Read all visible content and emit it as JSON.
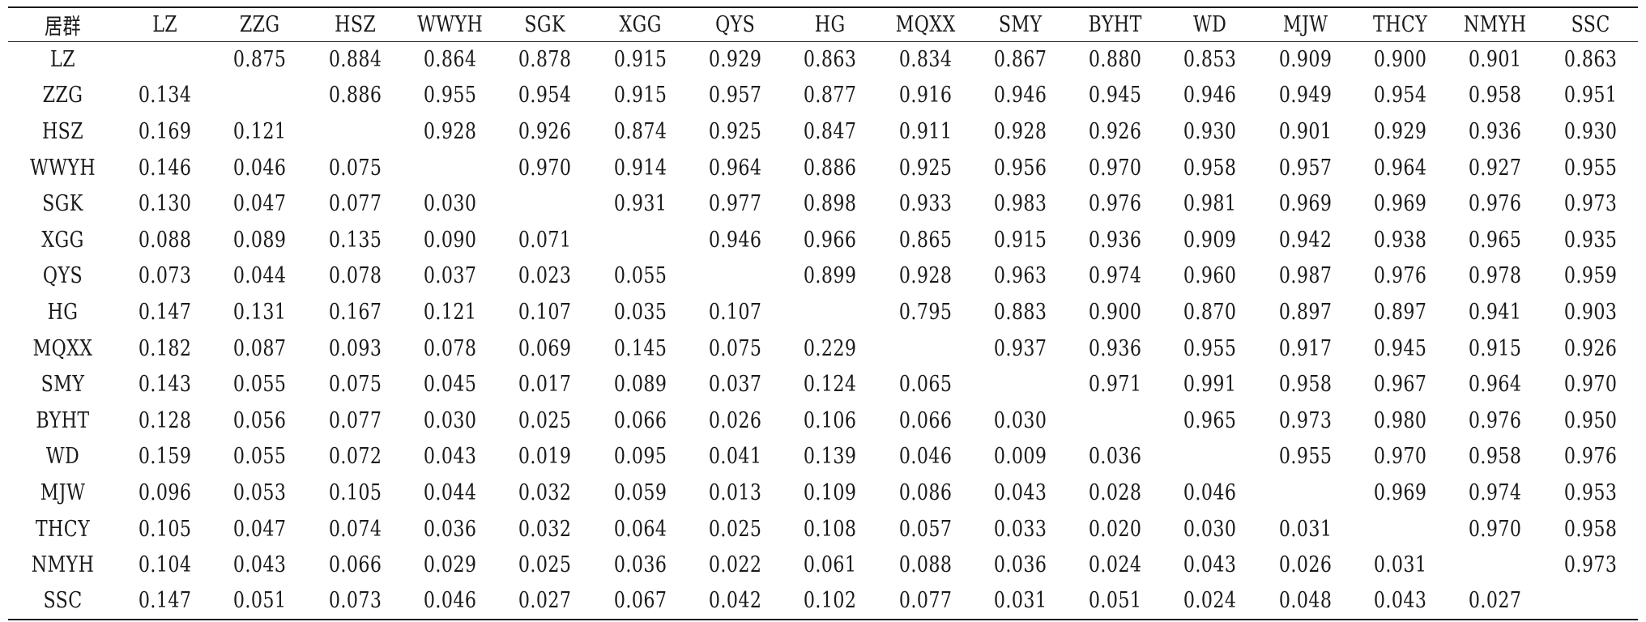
{
  "table": {
    "corner_label": "居群",
    "columns": [
      "LZ",
      "ZZG",
      "HSZ",
      "WWYH",
      "SGK",
      "XGG",
      "QYS",
      "HG",
      "MQXX",
      "SMY",
      "BYHT",
      "WD",
      "MJW",
      "THCY",
      "NMYH",
      "SSC"
    ],
    "rows": [
      {
        "label": "LZ",
        "cells": [
          "",
          "0.875",
          "0.884",
          "0.864",
          "0.878",
          "0.915",
          "0.929",
          "0.863",
          "0.834",
          "0.867",
          "0.880",
          "0.853",
          "0.909",
          "0.900",
          "0.901",
          "0.863"
        ]
      },
      {
        "label": "ZZG",
        "cells": [
          "0.134",
          "",
          "0.886",
          "0.955",
          "0.954",
          "0.915",
          "0.957",
          "0.877",
          "0.916",
          "0.946",
          "0.945",
          "0.946",
          "0.949",
          "0.954",
          "0.958",
          "0.951"
        ]
      },
      {
        "label": "HSZ",
        "cells": [
          "0.169",
          "0.121",
          "",
          "0.928",
          "0.926",
          "0.874",
          "0.925",
          "0.847",
          "0.911",
          "0.928",
          "0.926",
          "0.930",
          "0.901",
          "0.929",
          "0.936",
          "0.930"
        ]
      },
      {
        "label": "WWYH",
        "cells": [
          "0.146",
          "0.046",
          "0.075",
          "",
          "0.970",
          "0.914",
          "0.964",
          "0.886",
          "0.925",
          "0.956",
          "0.970",
          "0.958",
          "0.957",
          "0.964",
          "0.927",
          "0.955"
        ]
      },
      {
        "label": "SGK",
        "cells": [
          "0.130",
          "0.047",
          "0.077",
          "0.030",
          "",
          "0.931",
          "0.977",
          "0.898",
          "0.933",
          "0.983",
          "0.976",
          "0.981",
          "0.969",
          "0.969",
          "0.976",
          "0.973"
        ]
      },
      {
        "label": "XGG",
        "cells": [
          "0.088",
          "0.089",
          "0.135",
          "0.090",
          "0.071",
          "",
          "0.946",
          "0.966",
          "0.865",
          "0.915",
          "0.936",
          "0.909",
          "0.942",
          "0.938",
          "0.965",
          "0.935"
        ]
      },
      {
        "label": "QYS",
        "cells": [
          "0.073",
          "0.044",
          "0.078",
          "0.037",
          "0.023",
          "0.055",
          "",
          "0.899",
          "0.928",
          "0.963",
          "0.974",
          "0.960",
          "0.987",
          "0.976",
          "0.978",
          "0.959"
        ]
      },
      {
        "label": "HG",
        "cells": [
          "0.147",
          "0.131",
          "0.167",
          "0.121",
          "0.107",
          "0.035",
          "0.107",
          "",
          "0.795",
          "0.883",
          "0.900",
          "0.870",
          "0.897",
          "0.897",
          "0.941",
          "0.903"
        ]
      },
      {
        "label": "MQXX",
        "cells": [
          "0.182",
          "0.087",
          "0.093",
          "0.078",
          "0.069",
          "0.145",
          "0.075",
          "0.229",
          "",
          "0.937",
          "0.936",
          "0.955",
          "0.917",
          "0.945",
          "0.915",
          "0.926"
        ]
      },
      {
        "label": "SMY",
        "cells": [
          "0.143",
          "0.055",
          "0.075",
          "0.045",
          "0.017",
          "0.089",
          "0.037",
          "0.124",
          "0.065",
          "",
          "0.971",
          "0.991",
          "0.958",
          "0.967",
          "0.964",
          "0.970"
        ]
      },
      {
        "label": "BYHT",
        "cells": [
          "0.128",
          "0.056",
          "0.077",
          "0.030",
          "0.025",
          "0.066",
          "0.026",
          "0.106",
          "0.066",
          "0.030",
          "",
          "0.965",
          "0.973",
          "0.980",
          "0.976",
          "0.950"
        ]
      },
      {
        "label": "WD",
        "cells": [
          "0.159",
          "0.055",
          "0.072",
          "0.043",
          "0.019",
          "0.095",
          "0.041",
          "0.139",
          "0.046",
          "0.009",
          "0.036",
          "",
          "0.955",
          "0.970",
          "0.958",
          "0.976"
        ]
      },
      {
        "label": "MJW",
        "cells": [
          "0.096",
          "0.053",
          "0.105",
          "0.044",
          "0.032",
          "0.059",
          "0.013",
          "0.109",
          "0.086",
          "0.043",
          "0.028",
          "0.046",
          "",
          "0.969",
          "0.974",
          "0.953"
        ]
      },
      {
        "label": "THCY",
        "cells": [
          "0.105",
          "0.047",
          "0.074",
          "0.036",
          "0.032",
          "0.064",
          "0.025",
          "0.108",
          "0.057",
          "0.033",
          "0.020",
          "0.030",
          "0.031",
          "",
          "0.970",
          "0.958"
        ]
      },
      {
        "label": "NMYH",
        "cells": [
          "0.104",
          "0.043",
          "0.066",
          "0.029",
          "0.025",
          "0.036",
          "0.022",
          "0.061",
          "0.088",
          "0.036",
          "0.024",
          "0.043",
          "0.026",
          "0.031",
          "",
          "0.973"
        ]
      },
      {
        "label": "SSC",
        "cells": [
          "0.147",
          "0.051",
          "0.073",
          "0.046",
          "0.027",
          "0.067",
          "0.042",
          "0.102",
          "0.077",
          "0.031",
          "0.051",
          "0.024",
          "0.048",
          "0.043",
          "0.027",
          ""
        ]
      }
    ]
  }
}
